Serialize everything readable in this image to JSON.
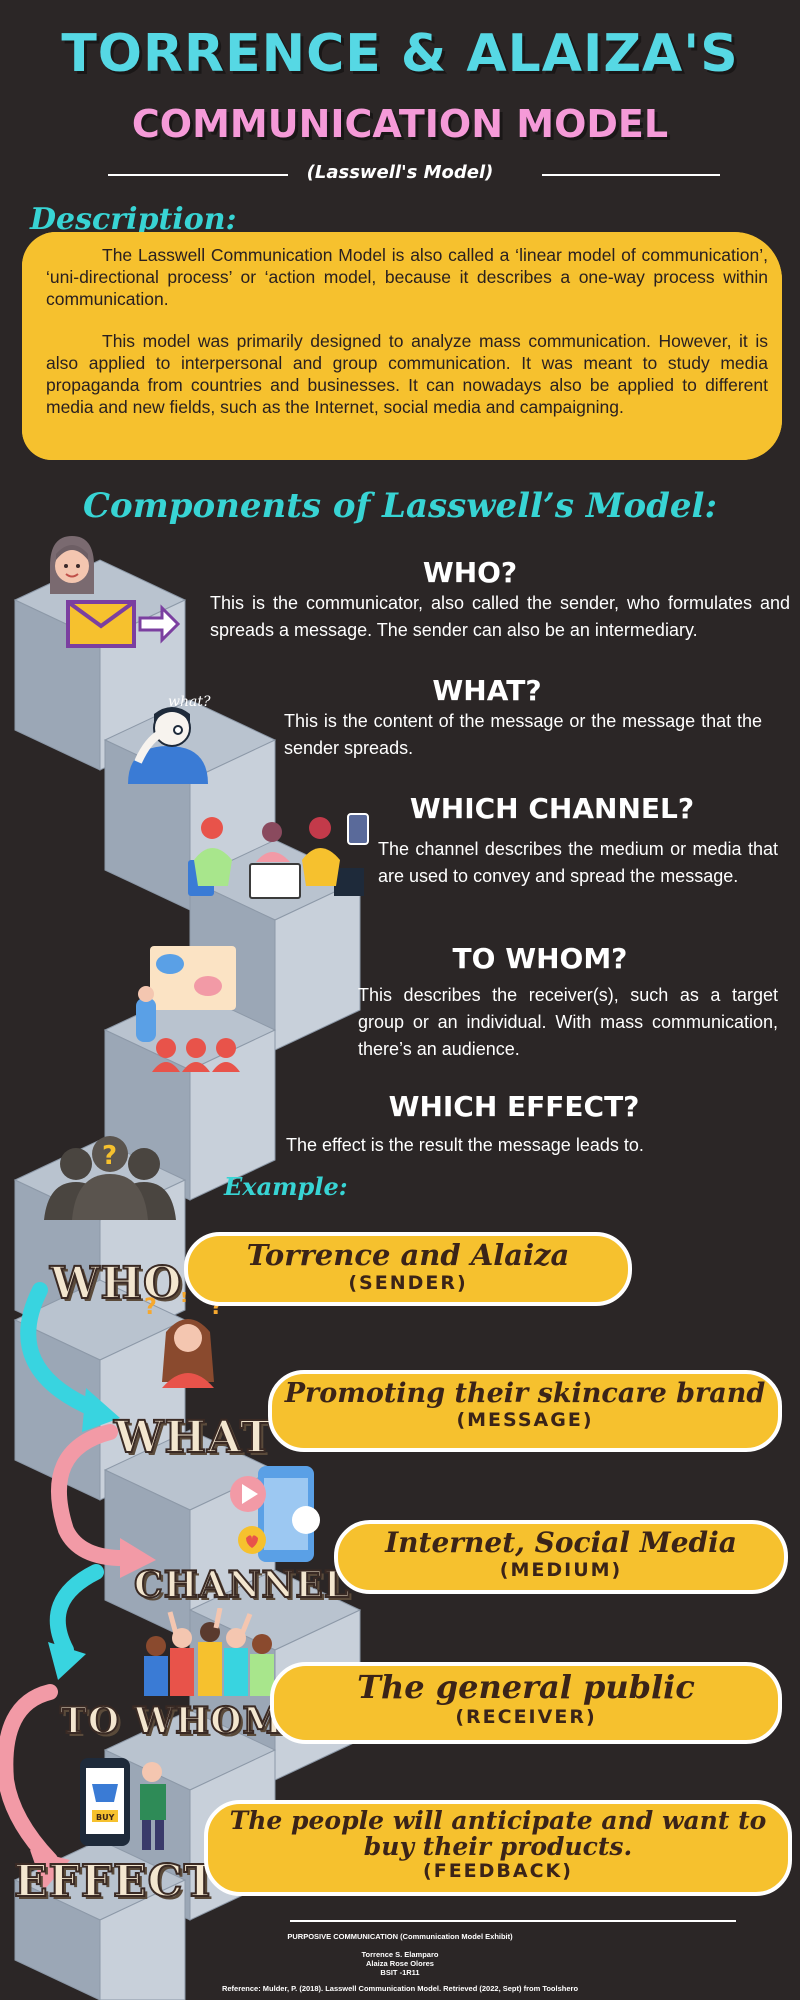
{
  "header": {
    "title": "TORRENCE & ALAIZA'S",
    "subtitle": "COMMUNICATION MODEL",
    "model_label": "(Lasswell's Model)"
  },
  "description": {
    "heading": "Description:",
    "paragraph1": "The Lasswell Communication Model is also called a ‘linear model of communication’, ‘uni-directional process’ or ‘action model, because it describes a one-way process within communication.",
    "paragraph2": "This model was primarily designed to analyze mass communication. However, it is also applied to interpersonal and group communication. It was meant to study media propaganda from countries and businesses. It can nowadays also be applied to different media and new fields, such as the Internet, social media and campaigning."
  },
  "components": {
    "heading": "Components of Lasswell’s Model:",
    "items": [
      {
        "title": "WHO?",
        "text": "This is the communicator, also called the sender, who formulates and spreads a message. The sender can also be an intermediary."
      },
      {
        "title": "WHAT?",
        "text": "This is the content of the message or the message that the sender spreads."
      },
      {
        "title": "WHICH CHANNEL?",
        "text": "The channel describes the medium or media that are used to convey and spread the message."
      },
      {
        "title": "TO WHOM?",
        "text": "This describes the receiver(s), such as a target group or an individual. With mass communication, there’s an audience."
      },
      {
        "title": "WHICH EFFECT?",
        "text": "The effect is the result the message leads to."
      }
    ],
    "what_doodle": "what?"
  },
  "example": {
    "heading": "Example:",
    "rows": [
      {
        "label": "WHO",
        "value": "Torrence and Alaiza",
        "role": "(SENDER)"
      },
      {
        "label": "WHAT",
        "value": "Promoting their skincare brand",
        "role": "(MESSAGE)"
      },
      {
        "label": "CHANNEL",
        "value": "Internet, Social Media",
        "role": "(MEDIUM)"
      },
      {
        "label": "TO WHOM",
        "value": "The general public",
        "role": "(RECEIVER)"
      },
      {
        "label": "EFFECT",
        "value": "The people will anticipate and want to buy their products.",
        "role": "(FEEDBACK)"
      }
    ],
    "buy_tag": "BUY"
  },
  "footer": {
    "course": "PURPOSIVE COMMUNICATION  (Communication Model Exhibit)",
    "author1": "Torrence S. Elamparo",
    "author2": "Alaiza Rose Olores",
    "section": "BSIT -1R11",
    "reference": "Reference: Mulder, P. (2018). Lasswell Communication Model. Retrieved (2022, Sept) from Toolshero"
  },
  "colors": {
    "background": "#2b2626",
    "title_cyan": "#56d8e4",
    "title_pink": "#f59ad8",
    "highlight_yellow": "#f6c12e",
    "arrow_cyan": "#38d4e0",
    "arrow_pink": "#f29aa6"
  },
  "icons": [
    "woman-avatar-icon",
    "envelope-icon",
    "thinking-man-icon",
    "people-devices-icon",
    "chat-audience-icon",
    "question-silhouette-icon",
    "woman-question-icon",
    "smartphone-media-icon",
    "crowd-cheering-icon",
    "shopping-phone-icon"
  ]
}
